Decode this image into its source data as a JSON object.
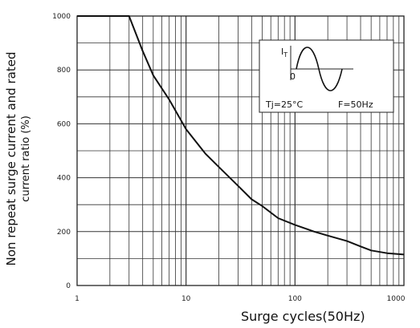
{
  "chart_data": {
    "type": "line",
    "xlabel": "Surge cycles(50Hz)",
    "ylabel_line1": "Non repeat surge current and rated",
    "ylabel_line2": "current ratio (%)",
    "x_scale": "log",
    "xlim": [
      1,
      1000
    ],
    "ylim": [
      0,
      1000
    ],
    "grid": true,
    "x_ticks": [
      {
        "value": 1,
        "label": "1"
      },
      {
        "value": 10,
        "label": "10"
      },
      {
        "value": 100,
        "label": "100"
      },
      {
        "value": 1000,
        "label": "1000"
      }
    ],
    "y_ticks": [
      {
        "value": 0,
        "label": "0"
      },
      {
        "value": 200,
        "label": "200"
      },
      {
        "value": 400,
        "label": "400"
      },
      {
        "value": 600,
        "label": "600"
      },
      {
        "value": 800,
        "label": "800"
      },
      {
        "value": 1000,
        "label": "1000"
      }
    ],
    "series": [
      {
        "x": [
          1,
          2,
          3,
          4,
          5,
          7,
          10,
          15,
          20,
          30,
          40,
          50,
          70,
          100,
          150,
          200,
          300,
          400,
          500,
          700,
          1000
        ],
        "y": [
          1000,
          1000,
          1000,
          870,
          780,
          690,
          580,
          490,
          440,
          370,
          320,
          295,
          250,
          225,
          200,
          185,
          165,
          145,
          130,
          120,
          115
        ]
      }
    ],
    "inset": {
      "it_label": "I",
      "it_sub": "T",
      "zero_label": "0",
      "tj_label": "Tj=25°C",
      "f_label": "F=50Hz"
    }
  }
}
